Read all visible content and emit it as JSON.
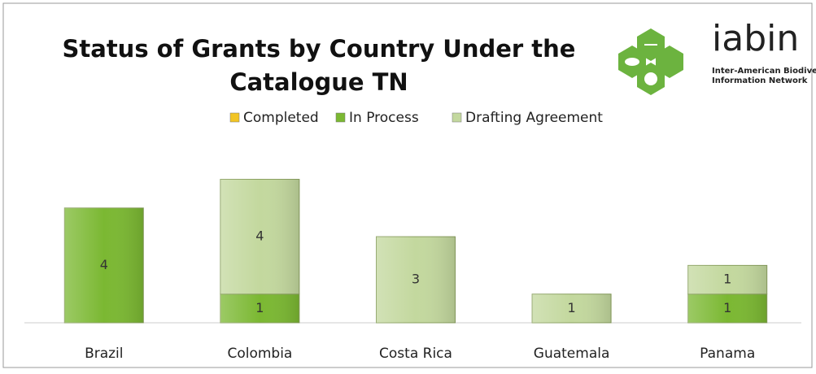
{
  "chart_data": {
    "type": "stacked-bar",
    "title_lines": [
      "Status of Grants by Country Under the",
      "Catalogue TN"
    ],
    "categories": [
      "Brazil",
      "Colombia",
      "Costa Rica",
      "Guatemala",
      "Panama"
    ],
    "series": [
      {
        "name": "Completed",
        "color": "#f2c524",
        "values": [
          0,
          0,
          0,
          0,
          0
        ]
      },
      {
        "name": "In Process",
        "color": "#7bb832",
        "values": [
          4,
          1,
          0,
          0,
          1
        ]
      },
      {
        "name": "Drafting Agreement",
        "color": "#c3d89e",
        "values": [
          0,
          4,
          3,
          1,
          1
        ]
      }
    ],
    "legend": "top"
  },
  "logo": {
    "name": "iabin",
    "tagline_lines": [
      "Inter-American Biodiversity",
      "Information Network"
    ]
  }
}
